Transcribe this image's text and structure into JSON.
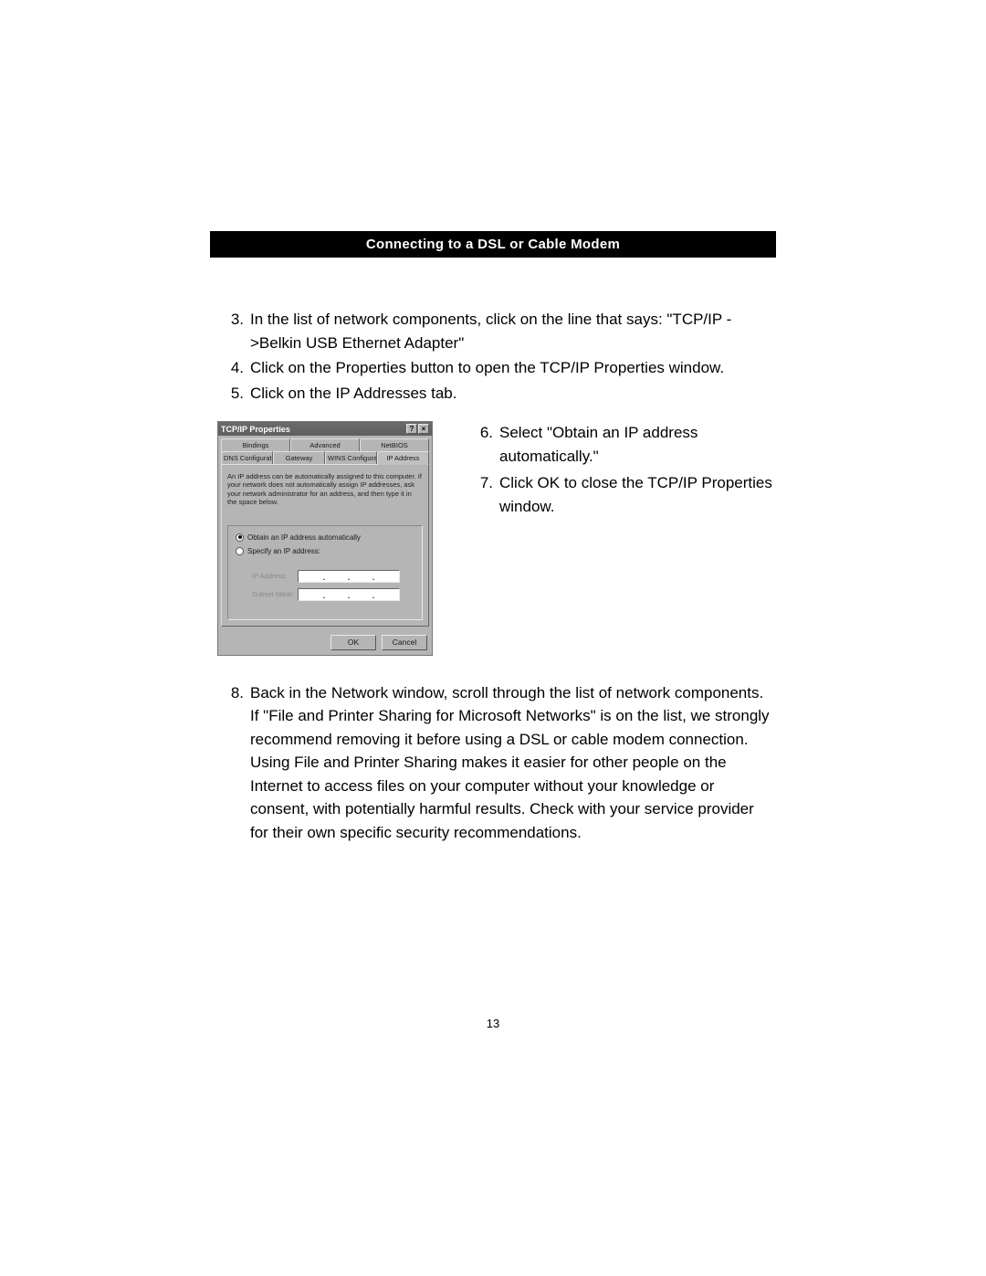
{
  "colors": {
    "page_bg": "#ffffff",
    "header_bg": "#000000",
    "header_text": "#ffffff",
    "body_text": "#000000",
    "dialog_bg": "#b5b5b5",
    "titlebar_bg": "#6a6a6a"
  },
  "typography": {
    "body_fontsize_pt": 13,
    "header_fontsize_pt": 11,
    "dialog_fontsize_pt": 6
  },
  "section_header": "Connecting to a DSL or Cable Modem",
  "steps_top": [
    {
      "n": "3.",
      "text": "In the list of network components, click on the line that says: \"TCP/IP ->Belkin USB Ethernet Adapter\""
    },
    {
      "n": "4.",
      "text": "Click on the Properties button to open the TCP/IP Properties window."
    },
    {
      "n": "5.",
      "text": "Click on the IP Addresses tab."
    }
  ],
  "steps_right": [
    {
      "n": "6.",
      "text": "Select \"Obtain an IP address automatically.\""
    },
    {
      "n": "7.",
      "text": "Click OK to close the TCP/IP Properties window."
    }
  ],
  "step8": {
    "n": "8.",
    "text": "Back in the Network window, scroll through the list of network components. If \"File and Printer Sharing for Microsoft Networks\" is on the list, we strongly recommend removing it before using a DSL or cable modem connection. Using File and Printer Sharing makes it easier for other people on the Internet to access files on your computer without your knowledge or consent, with potentially harmful results. Check with your service provider for their own specific security recommendations."
  },
  "dialog": {
    "title": "TCP/IP Properties",
    "help_btn": "?",
    "close_btn": "×",
    "tabs_row1": [
      "Bindings",
      "Advanced",
      "NetBIOS"
    ],
    "tabs_row2": [
      "DNS Configuration",
      "Gateway",
      "WINS Configuration",
      "IP Address"
    ],
    "active_tab": "IP Address",
    "description": "An IP address can be automatically assigned to this computer. If your network does not automatically assign IP addresses, ask your network administrator for an address, and then type it in the space below.",
    "radio1": "Obtain an IP address automatically",
    "radio2": "Specify an IP address:",
    "radio_selected_index": 0,
    "ip_label": "IP Address:",
    "subnet_label": "Subnet Mask:",
    "ok_btn": "OK",
    "cancel_btn": "Cancel"
  },
  "page_number": "13"
}
